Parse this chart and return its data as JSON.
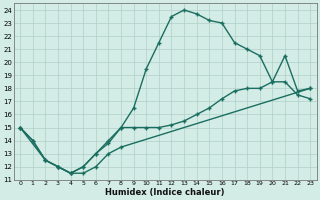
{
  "xlabel": "Humidex (Indice chaleur)",
  "bg_color": "#d4ece6",
  "grid_color": "#b0d0c8",
  "line_color": "#1a6e60",
  "xlim": [
    -0.5,
    23.5
  ],
  "ylim": [
    11,
    24.5
  ],
  "xticks": [
    0,
    1,
    2,
    3,
    4,
    5,
    6,
    7,
    8,
    9,
    10,
    11,
    12,
    13,
    14,
    15,
    16,
    17,
    18,
    19,
    20,
    21,
    22,
    23
  ],
  "yticks": [
    11,
    12,
    13,
    14,
    15,
    16,
    17,
    18,
    19,
    20,
    21,
    22,
    23,
    24
  ],
  "line1_x": [
    0,
    1,
    2,
    3,
    4,
    5,
    6,
    7,
    8,
    23
  ],
  "line1_y": [
    15,
    14,
    12.5,
    12,
    11.5,
    11.5,
    12,
    13,
    13.5,
    18
  ],
  "line2_x": [
    0,
    1,
    2,
    3,
    4,
    5,
    6,
    7,
    8,
    9,
    10,
    11,
    12,
    13,
    14,
    15,
    16,
    17,
    18,
    19,
    20,
    21,
    22,
    23
  ],
  "line2_y": [
    15,
    14,
    12.5,
    12,
    11.5,
    12,
    13,
    14,
    15,
    16.5,
    19.5,
    21.5,
    23.5,
    24,
    23.7,
    23.2,
    23,
    21.5,
    21,
    20.5,
    18.5,
    18.5,
    17.5,
    17.2
  ],
  "line3_x": [
    0,
    2,
    3,
    4,
    5,
    6,
    7,
    8,
    9,
    10,
    11,
    12,
    13,
    14,
    15,
    16,
    17,
    18,
    19,
    20,
    21,
    22,
    23
  ],
  "line3_y": [
    15,
    12.5,
    12,
    11.5,
    12,
    13,
    13.8,
    15,
    15,
    15,
    15,
    15.2,
    15.5,
    16,
    16.5,
    17.2,
    17.8,
    18,
    18,
    18.5,
    20.5,
    17.8,
    18
  ]
}
